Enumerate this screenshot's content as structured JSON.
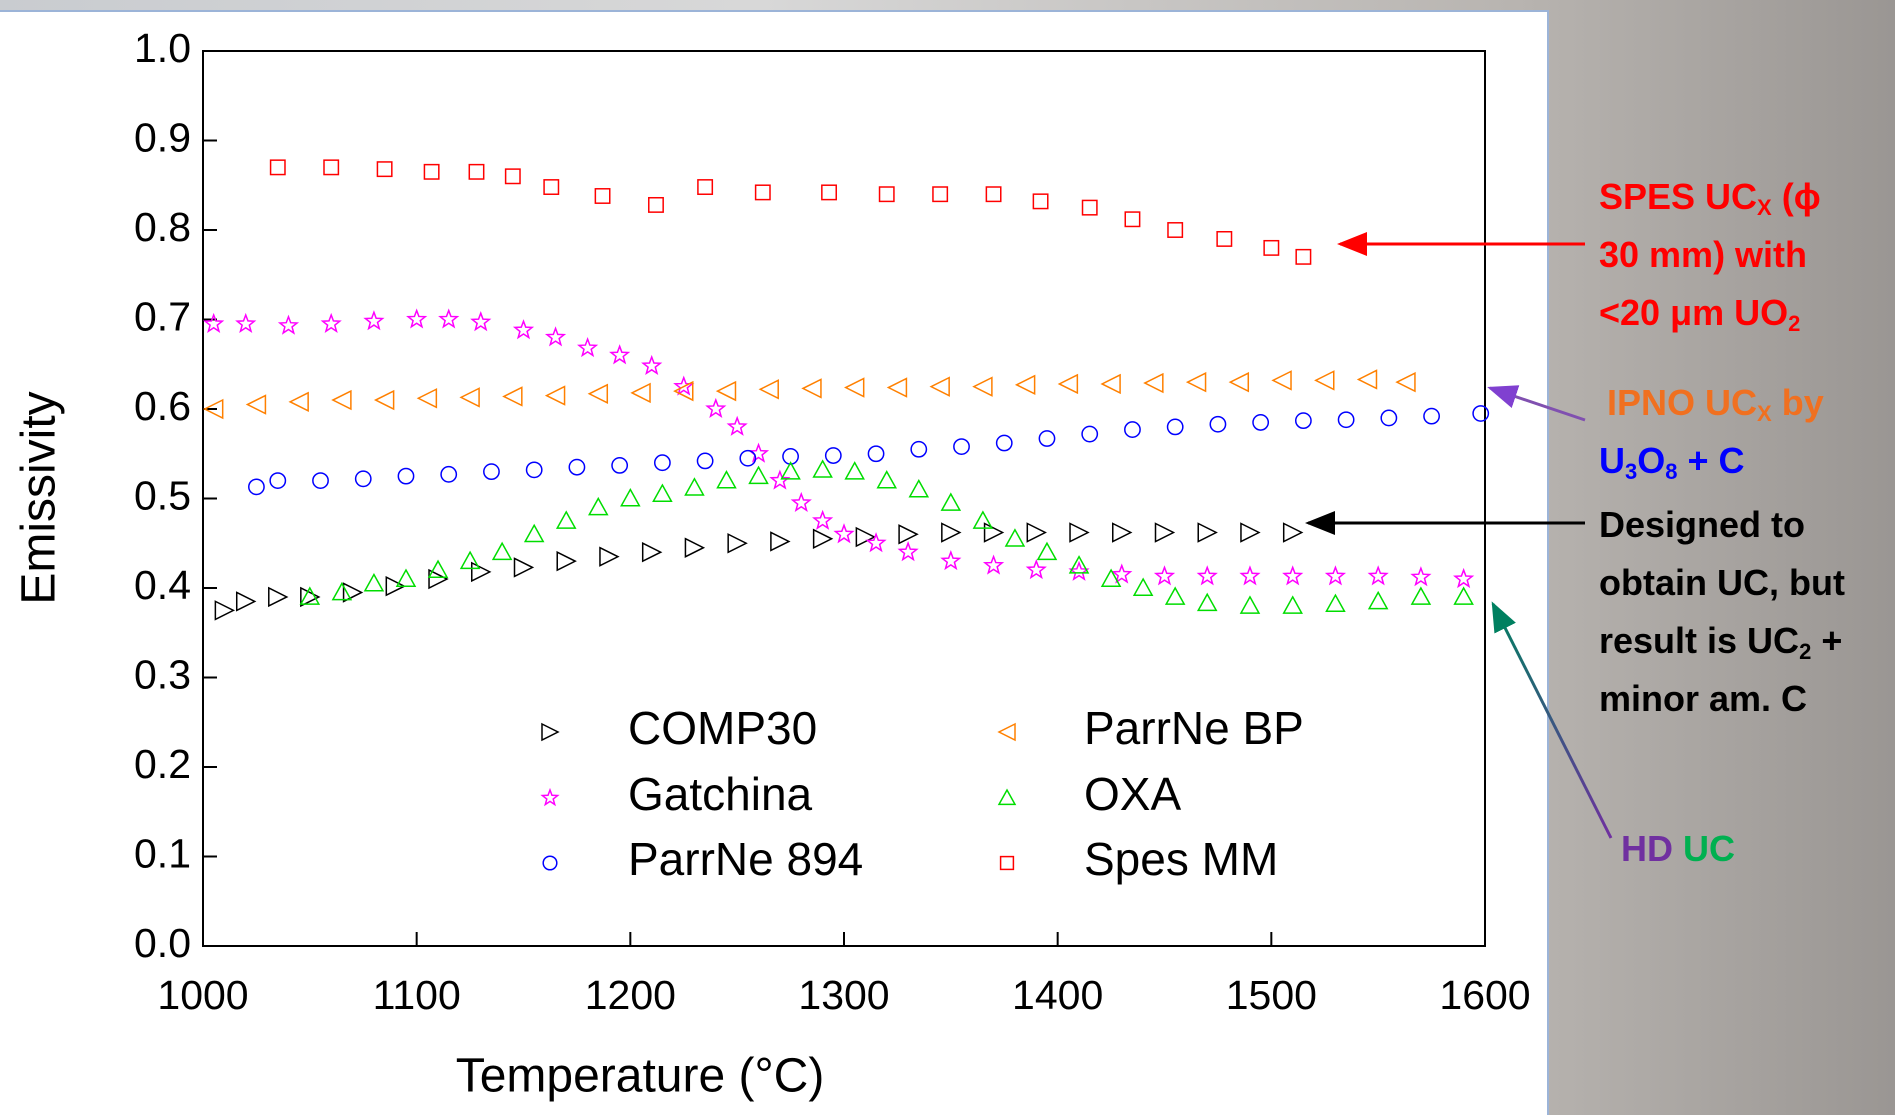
{
  "chart_data": {
    "type": "scatter",
    "x_label": "Temperature (°C)",
    "y_label": "Emissivity",
    "xlim": [
      1000,
      1600
    ],
    "xticks": [
      1000,
      1100,
      1200,
      1300,
      1400,
      1500,
      1600
    ],
    "ylim": [
      0,
      1
    ],
    "yticks": [
      {
        "value": 0,
        "label": "0.0"
      },
      0.1,
      0.2,
      0.3,
      0.4,
      0.5,
      0.6,
      0.7,
      0.8,
      0.9,
      {
        "value": 1,
        "label": "1.0"
      }
    ],
    "series": [
      {
        "name": "COMP30",
        "color": "#000000",
        "marker": "triangle-right",
        "x": [
          1010,
          1020,
          1035,
          1050,
          1070,
          1090,
          1110,
          1130,
          1150,
          1170,
          1190,
          1210,
          1230,
          1250,
          1270,
          1290,
          1310,
          1330,
          1350,
          1370,
          1390,
          1410,
          1430,
          1450,
          1470,
          1490,
          1510
        ],
        "values": [
          0.375,
          0.385,
          0.39,
          0.39,
          0.395,
          0.402,
          0.41,
          0.418,
          0.423,
          0.43,
          0.435,
          0.44,
          0.445,
          0.45,
          0.452,
          0.455,
          0.457,
          0.46,
          0.462,
          0.462,
          0.462,
          0.462,
          0.462,
          0.462,
          0.462,
          0.462,
          0.462
        ]
      },
      {
        "name": "Gatchina",
        "color": "#ff00ff",
        "marker": "star",
        "x": [
          1005,
          1020,
          1040,
          1060,
          1080,
          1100,
          1115,
          1130,
          1150,
          1165,
          1180,
          1195,
          1210,
          1225,
          1240,
          1250,
          1260,
          1270,
          1280,
          1290,
          1300,
          1315,
          1330,
          1350,
          1370,
          1390,
          1410,
          1430,
          1450,
          1470,
          1490,
          1510,
          1530,
          1550,
          1570,
          1590
        ],
        "values": [
          0.695,
          0.695,
          0.693,
          0.695,
          0.698,
          0.7,
          0.7,
          0.697,
          0.688,
          0.68,
          0.668,
          0.66,
          0.648,
          0.625,
          0.6,
          0.58,
          0.55,
          0.52,
          0.495,
          0.475,
          0.46,
          0.45,
          0.44,
          0.43,
          0.425,
          0.42,
          0.418,
          0.415,
          0.413,
          0.413,
          0.413,
          0.413,
          0.413,
          0.413,
          0.412,
          0.41
        ]
      },
      {
        "name": "ParrNe 894",
        "color": "#0000ff",
        "marker": "circle",
        "x": [
          1025,
          1035,
          1055,
          1075,
          1095,
          1115,
          1135,
          1155,
          1175,
          1195,
          1215,
          1235,
          1255,
          1275,
          1295,
          1315,
          1335,
          1355,
          1375,
          1395,
          1415,
          1435,
          1455,
          1475,
          1495,
          1515,
          1535,
          1555,
          1575,
          1598
        ],
        "values": [
          0.513,
          0.52,
          0.52,
          0.522,
          0.525,
          0.527,
          0.53,
          0.532,
          0.535,
          0.537,
          0.54,
          0.542,
          0.545,
          0.547,
          0.548,
          0.55,
          0.555,
          0.558,
          0.562,
          0.567,
          0.572,
          0.577,
          0.58,
          0.583,
          0.585,
          0.587,
          0.588,
          0.59,
          0.592,
          0.595
        ]
      },
      {
        "name": "ParrNe BP",
        "color": "#ff8000",
        "marker": "triangle-left",
        "x": [
          1005,
          1025,
          1045,
          1065,
          1085,
          1105,
          1125,
          1145,
          1165,
          1185,
          1205,
          1225,
          1245,
          1265,
          1285,
          1305,
          1325,
          1345,
          1365,
          1385,
          1405,
          1425,
          1445,
          1465,
          1485,
          1505,
          1525,
          1545,
          1563
        ],
        "values": [
          0.6,
          0.605,
          0.608,
          0.61,
          0.61,
          0.612,
          0.613,
          0.614,
          0.615,
          0.617,
          0.618,
          0.62,
          0.62,
          0.622,
          0.623,
          0.624,
          0.624,
          0.625,
          0.625,
          0.627,
          0.628,
          0.628,
          0.629,
          0.63,
          0.63,
          0.632,
          0.632,
          0.633,
          0.63
        ]
      },
      {
        "name": "OXA",
        "color": "#00dd00",
        "marker": "triangle-up",
        "x": [
          1050,
          1065,
          1080,
          1095,
          1110,
          1125,
          1140,
          1155,
          1170,
          1185,
          1200,
          1215,
          1230,
          1245,
          1260,
          1275,
          1290,
          1305,
          1320,
          1335,
          1350,
          1365,
          1380,
          1395,
          1410,
          1425,
          1440,
          1455,
          1470,
          1490,
          1510,
          1530,
          1550,
          1570,
          1590
        ],
        "values": [
          0.39,
          0.395,
          0.405,
          0.41,
          0.42,
          0.43,
          0.44,
          0.46,
          0.475,
          0.49,
          0.5,
          0.505,
          0.512,
          0.52,
          0.525,
          0.53,
          0.532,
          0.53,
          0.52,
          0.51,
          0.495,
          0.475,
          0.455,
          0.44,
          0.425,
          0.41,
          0.4,
          0.39,
          0.383,
          0.38,
          0.38,
          0.382,
          0.385,
          0.39,
          0.39
        ]
      },
      {
        "name": "Spes MM",
        "color": "#ff0000",
        "marker": "square",
        "x": [
          1035,
          1060,
          1085,
          1107,
          1128,
          1145,
          1163,
          1187,
          1212,
          1235,
          1262,
          1293,
          1320,
          1345,
          1370,
          1392,
          1415,
          1435,
          1455,
          1478,
          1500,
          1515
        ],
        "values": [
          0.87,
          0.87,
          0.868,
          0.865,
          0.865,
          0.86,
          0.848,
          0.838,
          0.828,
          0.848,
          0.842,
          0.842,
          0.84,
          0.84,
          0.84,
          0.832,
          0.825,
          0.812,
          0.8,
          0.79,
          0.78,
          0.77
        ]
      }
    ],
    "annotations": [
      {
        "lines": [
          [
            {
              "text": "SPES UC",
              "color": "#ff0000"
            },
            {
              "text": "X",
              "color": "#ff0000",
              "sub": true
            },
            {
              "text": " (ϕ",
              "color": "#ff0000"
            }
          ],
          [
            {
              "text": "30 mm) with",
              "color": "#ff0000"
            }
          ],
          [
            {
              "text": "<20 μm UO",
              "color": "#ff0000"
            },
            {
              "text": "2",
              "color": "#ff0000",
              "sub": true
            }
          ]
        ]
      },
      {
        "lines": [
          [
            {
              "text": "IPNO UC",
              "color": "#f07020"
            },
            {
              "text": "X",
              "color": "#f07020",
              "sub": true
            },
            {
              "text": " by",
              "color": "#f07020"
            }
          ],
          [
            {
              "text": "U",
              "color": "#0000ff"
            },
            {
              "text": "3",
              "color": "#0000ff",
              "sub": true
            },
            {
              "text": "O",
              "color": "#0000ff"
            },
            {
              "text": "8",
              "color": "#0000ff",
              "sub": true
            },
            {
              "text": " + C",
              "color": "#0000ff"
            }
          ]
        ]
      },
      {
        "lines": [
          [
            {
              "text": "Designed to",
              "color": "#000000"
            }
          ],
          [
            {
              "text": "obtain UC, but",
              "color": "#000000"
            }
          ],
          [
            {
              "text": "result is UC",
              "color": "#000000"
            },
            {
              "text": "2",
              "color": "#000000",
              "sub": true
            },
            {
              "text": " +",
              "color": "#000000"
            }
          ],
          [
            {
              "text": "minor am. C",
              "color": "#000000"
            }
          ]
        ]
      },
      {
        "lines": [
          [
            {
              "text": "HD",
              "color": "#7030a0"
            },
            {
              "text": " UC",
              "color": "#00b050"
            }
          ]
        ]
      }
    ]
  }
}
